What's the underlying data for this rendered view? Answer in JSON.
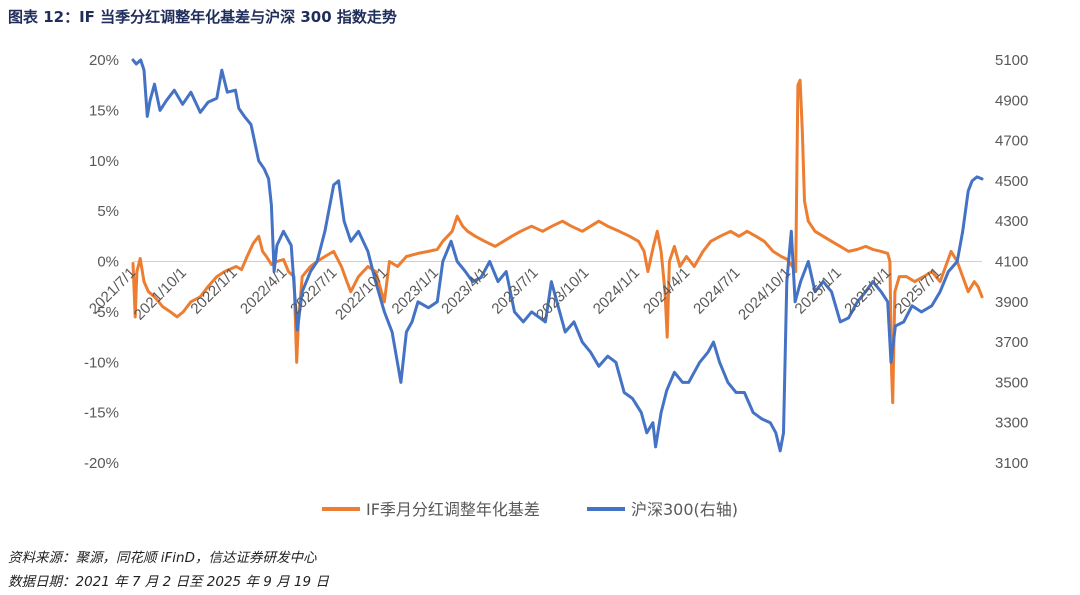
{
  "figure": {
    "title": "图表 12：IF 当季分红调整年化基差与沪深 300 指数走势"
  },
  "footer": {
    "source": "资料来源：聚源，同花顺 iFinD，信达证券研发中心",
    "date_range": "数据日期：2021 年 7 月 2 日至 2025 年 9 月 19 日"
  },
  "chart_data": {
    "type": "line",
    "title": "",
    "x_range": [
      "2021-07-02",
      "2025-09-19"
    ],
    "x_tick_labels": [
      "2021/7/1",
      "2021/10/1",
      "2022/1/1",
      "2022/4/1",
      "2022/7/1",
      "2022/10/1",
      "2023/1/1",
      "2023/4/1",
      "2023/7/1",
      "2023/10/1",
      "2024/1/1",
      "2024/4/1",
      "2024/7/1",
      "2024/10/1",
      "2025/1/1",
      "2025/4/1",
      "2025/7/1"
    ],
    "x_tick_dates": [
      "2021-07-01",
      "2021-10-01",
      "2022-01-01",
      "2022-04-01",
      "2022-07-01",
      "2022-10-01",
      "2023-01-01",
      "2023-04-01",
      "2023-07-01",
      "2023-10-01",
      "2024-01-01",
      "2024-04-01",
      "2024-07-01",
      "2024-10-01",
      "2025-01-01",
      "2025-04-01",
      "2025-07-01"
    ],
    "y_left": {
      "min": -0.2,
      "max": 0.2,
      "step": 0.05,
      "tick_labels": [
        "20%",
        "15%",
        "10%",
        "5%",
        "0%",
        "-5%",
        "-10%",
        "-15%",
        "-20%"
      ]
    },
    "y_right": {
      "min": 3100,
      "max": 5100,
      "step": 200,
      "tick_labels": [
        "5100",
        "4900",
        "4700",
        "4500",
        "4300",
        "4100",
        "3900",
        "3700",
        "3500",
        "3300",
        "3100"
      ]
    },
    "grid": false,
    "legend_position": "bottom",
    "series": [
      {
        "name": "IF季月分红调整年化基差",
        "axis": "left",
        "color": "#ED7D31",
        "points": [
          [
            "2021-07-02",
            -0.002
          ],
          [
            "2021-07-06",
            -0.055
          ],
          [
            "2021-07-09",
            -0.01
          ],
          [
            "2021-07-15",
            0.003
          ],
          [
            "2021-07-22",
            -0.02
          ],
          [
            "2021-07-30",
            -0.03
          ],
          [
            "2021-08-10",
            -0.035
          ],
          [
            "2021-08-25",
            -0.045
          ],
          [
            "2021-09-08",
            -0.05
          ],
          [
            "2021-09-20",
            -0.055
          ],
          [
            "2021-10-01",
            -0.05
          ],
          [
            "2021-10-15",
            -0.04
          ],
          [
            "2021-11-01",
            -0.035
          ],
          [
            "2021-11-15",
            -0.025
          ],
          [
            "2021-12-01",
            -0.015
          ],
          [
            "2021-12-15",
            -0.01
          ],
          [
            "2022-01-05",
            -0.005
          ],
          [
            "2022-01-15",
            -0.008
          ],
          [
            "2022-01-25",
            0.005
          ],
          [
            "2022-02-05",
            0.018
          ],
          [
            "2022-02-15",
            0.025
          ],
          [
            "2022-02-22",
            0.01
          ],
          [
            "2022-03-01",
            0.005
          ],
          [
            "2022-03-10",
            -0.003
          ],
          [
            "2022-03-20",
            0.0
          ],
          [
            "2022-04-01",
            0.002
          ],
          [
            "2022-04-10",
            -0.01
          ],
          [
            "2022-04-20",
            -0.015
          ],
          [
            "2022-04-25",
            -0.1
          ],
          [
            "2022-04-28",
            -0.06
          ],
          [
            "2022-05-05",
            -0.015
          ],
          [
            "2022-05-20",
            -0.005
          ],
          [
            "2022-06-01",
            0.0
          ],
          [
            "2022-06-15",
            0.005
          ],
          [
            "2022-07-01",
            0.01
          ],
          [
            "2022-07-15",
            -0.005
          ],
          [
            "2022-07-25",
            -0.02
          ],
          [
            "2022-08-01",
            -0.03
          ],
          [
            "2022-08-15",
            -0.015
          ],
          [
            "2022-09-01",
            -0.005
          ],
          [
            "2022-09-15",
            -0.01
          ],
          [
            "2022-10-01",
            -0.04
          ],
          [
            "2022-10-10",
            0.0
          ],
          [
            "2022-10-25",
            -0.005
          ],
          [
            "2022-11-10",
            0.005
          ],
          [
            "2022-12-01",
            0.008
          ],
          [
            "2022-12-20",
            0.01
          ],
          [
            "2023-01-05",
            0.012
          ],
          [
            "2023-01-15",
            0.02
          ],
          [
            "2023-02-01",
            0.03
          ],
          [
            "2023-02-10",
            0.045
          ],
          [
            "2023-02-20",
            0.035
          ],
          [
            "2023-03-01",
            0.03
          ],
          [
            "2023-03-15",
            0.025
          ],
          [
            "2023-04-01",
            0.02
          ],
          [
            "2023-04-20",
            0.015
          ],
          [
            "2023-05-05",
            0.02
          ],
          [
            "2023-05-20",
            0.025
          ],
          [
            "2023-06-05",
            0.03
          ],
          [
            "2023-06-25",
            0.035
          ],
          [
            "2023-07-15",
            0.03
          ],
          [
            "2023-08-01",
            0.035
          ],
          [
            "2023-08-20",
            0.04
          ],
          [
            "2023-09-05",
            0.035
          ],
          [
            "2023-09-25",
            0.03
          ],
          [
            "2023-10-10",
            0.035
          ],
          [
            "2023-10-25",
            0.04
          ],
          [
            "2023-11-10",
            0.035
          ],
          [
            "2023-12-01",
            0.03
          ],
          [
            "2023-12-20",
            0.025
          ],
          [
            "2024-01-05",
            0.02
          ],
          [
            "2024-01-15",
            0.01
          ],
          [
            "2024-01-22",
            -0.01
          ],
          [
            "2024-02-01",
            0.015
          ],
          [
            "2024-02-08",
            0.03
          ],
          [
            "2024-02-15",
            0.01
          ],
          [
            "2024-02-22",
            -0.03
          ],
          [
            "2024-02-26",
            -0.075
          ],
          [
            "2024-03-01",
            0.0
          ],
          [
            "2024-03-10",
            0.015
          ],
          [
            "2024-03-20",
            -0.005
          ],
          [
            "2024-04-01",
            0.005
          ],
          [
            "2024-04-15",
            -0.005
          ],
          [
            "2024-05-01",
            0.01
          ],
          [
            "2024-05-15",
            0.02
          ],
          [
            "2024-06-01",
            0.025
          ],
          [
            "2024-06-20",
            0.03
          ],
          [
            "2024-07-05",
            0.025
          ],
          [
            "2024-07-20",
            0.03
          ],
          [
            "2024-08-05",
            0.025
          ],
          [
            "2024-08-20",
            0.02
          ],
          [
            "2024-09-05",
            0.01
          ],
          [
            "2024-09-20",
            0.005
          ],
          [
            "2024-10-01",
            0.002
          ],
          [
            "2024-10-10",
            -0.005
          ],
          [
            "2024-10-16",
            -0.01
          ],
          [
            "2024-10-20",
            0.175
          ],
          [
            "2024-10-24",
            0.18
          ],
          [
            "2024-10-28",
            0.13
          ],
          [
            "2024-11-01",
            0.06
          ],
          [
            "2024-11-08",
            0.04
          ],
          [
            "2024-11-20",
            0.03
          ],
          [
            "2024-12-05",
            0.025
          ],
          [
            "2024-12-20",
            0.02
          ],
          [
            "2025-01-05",
            0.015
          ],
          [
            "2025-01-20",
            0.01
          ],
          [
            "2025-02-05",
            0.012
          ],
          [
            "2025-02-20",
            0.015
          ],
          [
            "2025-03-05",
            0.012
          ],
          [
            "2025-03-20",
            0.01
          ],
          [
            "2025-04-01",
            0.008
          ],
          [
            "2025-04-05",
            0.0
          ],
          [
            "2025-04-08",
            -0.11
          ],
          [
            "2025-04-10",
            -0.14
          ],
          [
            "2025-04-14",
            -0.03
          ],
          [
            "2025-04-22",
            -0.015
          ],
          [
            "2025-05-05",
            -0.015
          ],
          [
            "2025-05-20",
            -0.02
          ],
          [
            "2025-06-05",
            -0.015
          ],
          [
            "2025-06-20",
            -0.01
          ],
          [
            "2025-07-05",
            -0.02
          ],
          [
            "2025-07-15",
            -0.005
          ],
          [
            "2025-07-25",
            0.01
          ],
          [
            "2025-08-05",
            0.0
          ],
          [
            "2025-08-15",
            -0.015
          ],
          [
            "2025-08-25",
            -0.03
          ],
          [
            "2025-09-05",
            -0.02
          ],
          [
            "2025-09-12",
            -0.025
          ],
          [
            "2025-09-19",
            -0.035
          ]
        ]
      },
      {
        "name": "沪深300(右轴)",
        "axis": "right",
        "color": "#4472C4",
        "points": [
          [
            "2021-07-02",
            5100
          ],
          [
            "2021-07-08",
            5080
          ],
          [
            "2021-07-16",
            5100
          ],
          [
            "2021-07-22",
            5050
          ],
          [
            "2021-07-28",
            4820
          ],
          [
            "2021-08-02",
            4900
          ],
          [
            "2021-08-10",
            4980
          ],
          [
            "2021-08-20",
            4850
          ],
          [
            "2021-09-01",
            4900
          ],
          [
            "2021-09-15",
            4950
          ],
          [
            "2021-09-30",
            4880
          ],
          [
            "2021-10-15",
            4940
          ],
          [
            "2021-11-01",
            4840
          ],
          [
            "2021-11-15",
            4890
          ],
          [
            "2021-12-01",
            4910
          ],
          [
            "2021-12-10",
            5050
          ],
          [
            "2021-12-20",
            4940
          ],
          [
            "2022-01-04",
            4950
          ],
          [
            "2022-01-10",
            4860
          ],
          [
            "2022-01-20",
            4820
          ],
          [
            "2022-02-01",
            4780
          ],
          [
            "2022-02-15",
            4600
          ],
          [
            "2022-02-25",
            4560
          ],
          [
            "2022-03-05",
            4510
          ],
          [
            "2022-03-10",
            4380
          ],
          [
            "2022-03-15",
            4050
          ],
          [
            "2022-03-20",
            4180
          ],
          [
            "2022-04-01",
            4250
          ],
          [
            "2022-04-15",
            4180
          ],
          [
            "2022-04-26",
            3760
          ],
          [
            "2022-05-05",
            3950
          ],
          [
            "2022-05-20",
            4050
          ],
          [
            "2022-06-01",
            4100
          ],
          [
            "2022-06-15",
            4250
          ],
          [
            "2022-07-01",
            4480
          ],
          [
            "2022-07-10",
            4500
          ],
          [
            "2022-07-20",
            4300
          ],
          [
            "2022-08-01",
            4200
          ],
          [
            "2022-08-15",
            4250
          ],
          [
            "2022-09-01",
            4150
          ],
          [
            "2022-09-15",
            4000
          ],
          [
            "2022-10-01",
            3850
          ],
          [
            "2022-10-15",
            3750
          ],
          [
            "2022-10-31",
            3500
          ],
          [
            "2022-11-10",
            3750
          ],
          [
            "2022-11-20",
            3800
          ],
          [
            "2022-12-01",
            3900
          ],
          [
            "2022-12-20",
            3870
          ],
          [
            "2023-01-05",
            3900
          ],
          [
            "2023-01-15",
            4100
          ],
          [
            "2023-01-30",
            4200
          ],
          [
            "2023-02-10",
            4100
          ],
          [
            "2023-02-25",
            4050
          ],
          [
            "2023-03-10",
            4000
          ],
          [
            "2023-03-25",
            4020
          ],
          [
            "2023-04-10",
            4100
          ],
          [
            "2023-04-25",
            4000
          ],
          [
            "2023-05-10",
            4050
          ],
          [
            "2023-05-25",
            3850
          ],
          [
            "2023-06-10",
            3800
          ],
          [
            "2023-06-25",
            3850
          ],
          [
            "2023-07-10",
            3820
          ],
          [
            "2023-07-20",
            3800
          ],
          [
            "2023-07-31",
            4000
          ],
          [
            "2023-08-10",
            3900
          ],
          [
            "2023-08-25",
            3750
          ],
          [
            "2023-09-10",
            3800
          ],
          [
            "2023-09-25",
            3700
          ],
          [
            "2023-10-10",
            3650
          ],
          [
            "2023-10-25",
            3580
          ],
          [
            "2023-11-10",
            3630
          ],
          [
            "2023-11-25",
            3600
          ],
          [
            "2023-12-10",
            3450
          ],
          [
            "2023-12-25",
            3420
          ],
          [
            "2024-01-10",
            3350
          ],
          [
            "2024-01-20",
            3250
          ],
          [
            "2024-01-31",
            3300
          ],
          [
            "2024-02-05",
            3180
          ],
          [
            "2024-02-15",
            3350
          ],
          [
            "2024-02-25",
            3460
          ],
          [
            "2024-03-10",
            3550
          ],
          [
            "2024-03-25",
            3500
          ],
          [
            "2024-04-05",
            3500
          ],
          [
            "2024-04-15",
            3550
          ],
          [
            "2024-04-25",
            3600
          ],
          [
            "2024-05-10",
            3650
          ],
          [
            "2024-05-20",
            3700
          ],
          [
            "2024-05-31",
            3600
          ],
          [
            "2024-06-15",
            3500
          ],
          [
            "2024-06-30",
            3450
          ],
          [
            "2024-07-15",
            3450
          ],
          [
            "2024-07-31",
            3350
          ],
          [
            "2024-08-15",
            3320
          ],
          [
            "2024-08-31",
            3300
          ],
          [
            "2024-09-10",
            3250
          ],
          [
            "2024-09-18",
            3160
          ],
          [
            "2024-09-24",
            3250
          ],
          [
            "2024-09-30",
            4000
          ],
          [
            "2024-10-08",
            4250
          ],
          [
            "2024-10-15",
            3900
          ],
          [
            "2024-10-25",
            4000
          ],
          [
            "2024-11-08",
            4100
          ],
          [
            "2024-11-20",
            3950
          ],
          [
            "2024-12-05",
            4000
          ],
          [
            "2024-12-20",
            3950
          ],
          [
            "2025-01-05",
            3800
          ],
          [
            "2025-01-20",
            3820
          ],
          [
            "2025-02-05",
            3900
          ],
          [
            "2025-02-20",
            3950
          ],
          [
            "2025-03-05",
            4000
          ],
          [
            "2025-03-20",
            3950
          ],
          [
            "2025-04-01",
            3900
          ],
          [
            "2025-04-07",
            3600
          ],
          [
            "2025-04-15",
            3780
          ],
          [
            "2025-04-30",
            3800
          ],
          [
            "2025-05-15",
            3880
          ],
          [
            "2025-06-01",
            3850
          ],
          [
            "2025-06-20",
            3880
          ],
          [
            "2025-07-05",
            3950
          ],
          [
            "2025-07-20",
            4050
          ],
          [
            "2025-08-05",
            4100
          ],
          [
            "2025-08-15",
            4250
          ],
          [
            "2025-08-25",
            4450
          ],
          [
            "2025-09-01",
            4500
          ],
          [
            "2025-09-10",
            4520
          ],
          [
            "2025-09-19",
            4510
          ]
        ]
      }
    ]
  }
}
